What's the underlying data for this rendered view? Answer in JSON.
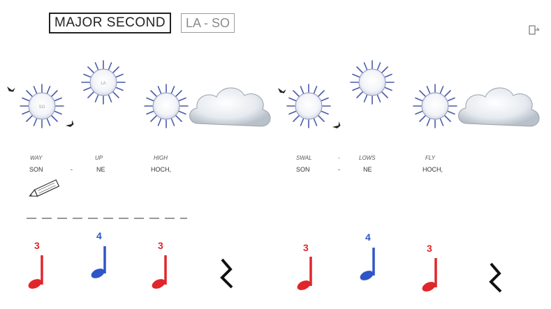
{
  "header": {
    "title": "MAJOR SECOND",
    "subtitle": "LA - SO"
  },
  "suns": {
    "left_label_1": "SO",
    "left_label_2": "LA"
  },
  "lyrics": {
    "left_top": [
      "WAY",
      "UP",
      "HIGH"
    ],
    "left_bottom": [
      "SON",
      "-",
      "NE",
      "HOCH,"
    ],
    "right_top": [
      "SWAL",
      "-",
      "LOWS",
      "FLY"
    ],
    "right_bottom": [
      "SON",
      "-",
      "NE",
      "HOCH,"
    ]
  },
  "notes": {
    "left": [
      "3",
      "4",
      "3"
    ],
    "right": [
      "3",
      "4",
      "3"
    ]
  },
  "colors": {
    "red": "#e0262b",
    "blue": "#2e56c7",
    "sun_outline": "#4a5aa8",
    "cloud": "#cfd6de"
  }
}
